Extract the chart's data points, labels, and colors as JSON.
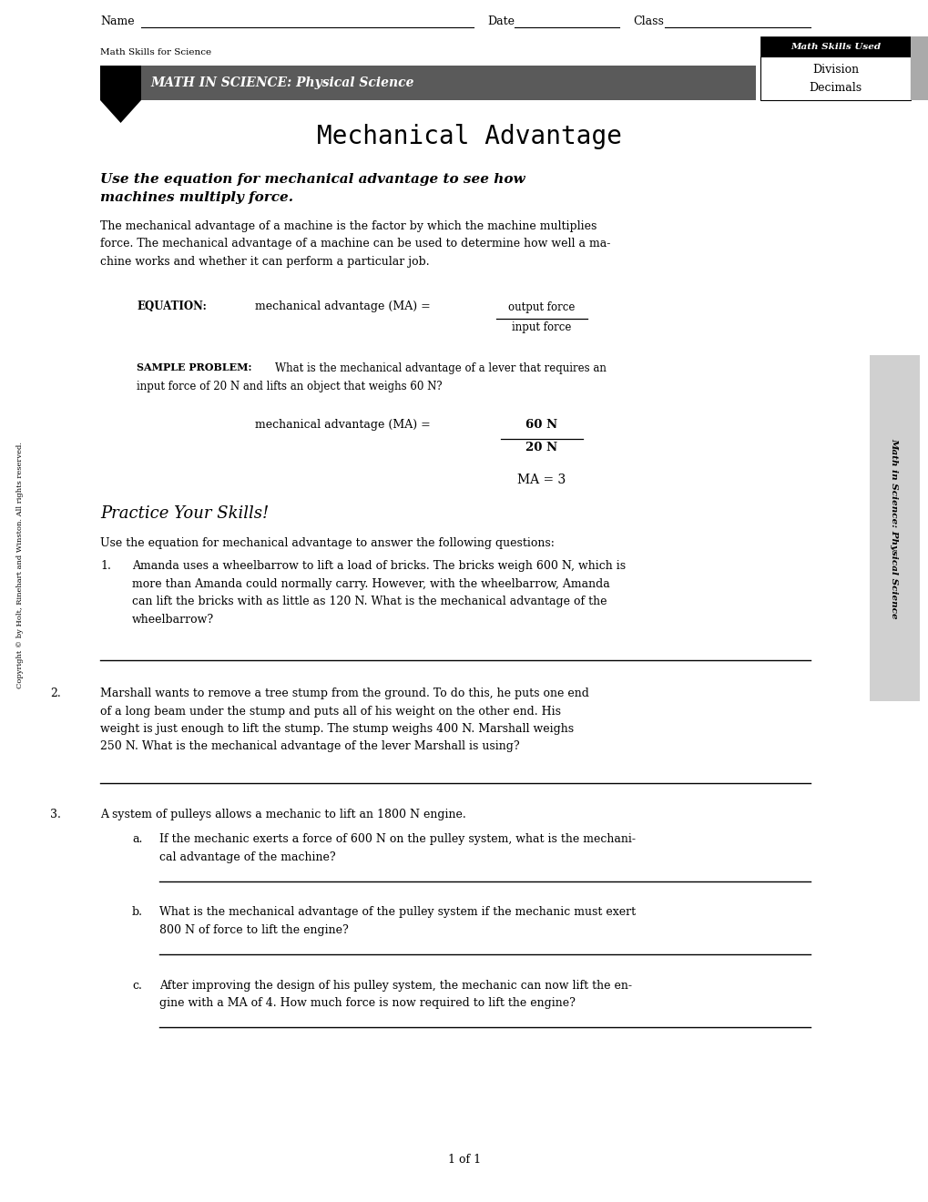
{
  "bg_color": "#f5f5f0",
  "page_bg": "#ffffff",
  "title_main": "Mechanical Advantage",
  "subtitle": "Use the equation for mechanical advantage to see how\nmachines multiply force.",
  "header_bar_color": "#666666",
  "header_text": "MATH IN SCIENCE: Physical Science",
  "header_label": "Math Skills for Science",
  "skills_box_title": "Math Skills Used",
  "skills_box_items": [
    "Division",
    "Decimals"
  ],
  "intro_para": "The mechanical advantage of a machine is the factor by which the machine multiplies force. The mechanical advantage of a machine can be used to determine how well a machine works and whether it can perform a particular job.",
  "equation_label": "EQUATION:",
  "equation_text": "mechanical advantage (MA) =",
  "eq_numerator": "output force",
  "eq_denominator": "input force",
  "sample_label": "SAMPLE PROBLEM:",
  "sample_text": "What is the mechanical advantage of a lever that requires an\ninput force of 20 N and lifts an object that weighs 60 N?",
  "sample_eq_text": "mechanical advantage (MA) =",
  "sample_eq_num": "60 N",
  "sample_eq_den": "20 N",
  "sample_result": "MA = 3",
  "practice_title": "Practice Your Skills!",
  "practice_intro": "Use the equation for mechanical advantage to answer the following questions:",
  "q1": "Amanda uses a wheelbarrow to lift a load of bricks. The bricks weigh 600 N, which is more than Amanda could normally carry. However, with the wheelbarrow, Amanda can lift the bricks with as little as 120 N. What is the mechanical advantage of the wheelbarrow?",
  "q2": "Marshall wants to remove a tree stump from the ground. To do this, he puts one end of a long beam under the stump and puts all of his weight on the other end. His weight is just enough to lift the stump. The stump weighs 400 N. Marshall weighs 250 N. What is the mechanical advantage of the lever Marshall is using?",
  "q3": "A system of pulleys allows a mechanic to lift an 1800 N engine.",
  "q3a": "If the mechanic exerts a force of 600 N on the pulley system, what is the mechanical advantage of the machine?",
  "q3b": "What is the mechanical advantage of the pulley system if the mechanic must exert 800 N of force to lift the engine?",
  "q3c": "After improving the design of his pulley system, the mechanic can now lift the engine with a MA of 4. How much force is now required to lift the engine?",
  "footer": "1 of 1",
  "copyright": "Copyright © by Holt, Rinehart and Winston. All rights reserved.",
  "side_label": "Math in Science: Physical Science"
}
